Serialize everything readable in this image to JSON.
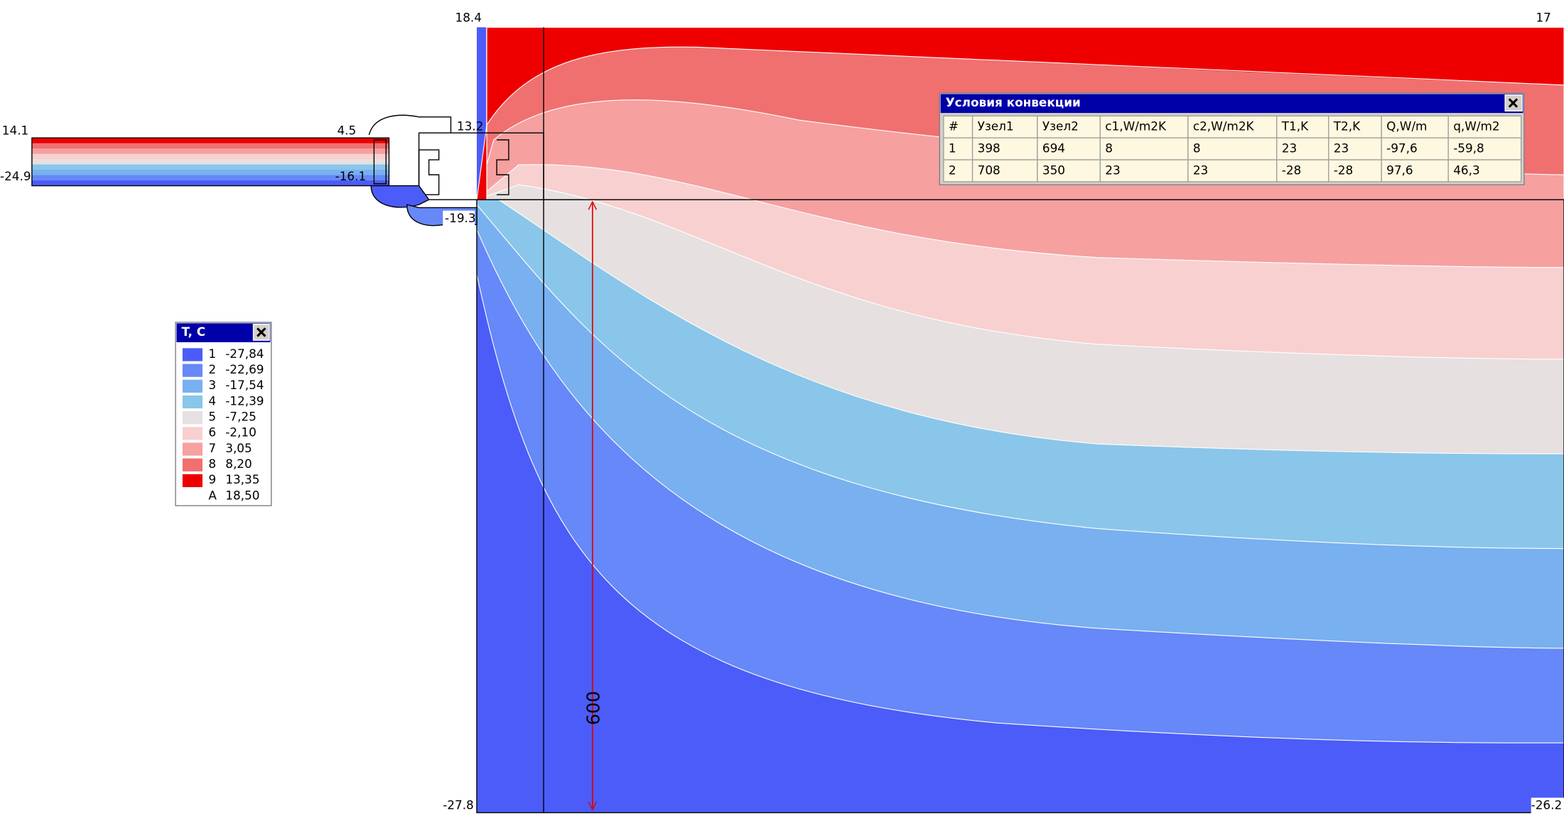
{
  "point_labels": {
    "top_left": "18.4",
    "top_right": "17",
    "glass_outer_warm": "14.1",
    "frame_warm": "4.5",
    "profile_warm": "13.2",
    "glass_outer_cold": "-24.9",
    "frame_cold": "-16.1",
    "profile_cold": "-19.3",
    "bottom_left": "-27.8",
    "bottom_right": "-26.2"
  },
  "dimension": "600",
  "legend": {
    "title": "T, C",
    "items": [
      {
        "index": "1",
        "value": "-27,84",
        "color": "#4c5cf8"
      },
      {
        "index": "2",
        "value": "-22,69",
        "color": "#6688f8"
      },
      {
        "index": "3",
        "value": "-17,54",
        "color": "#78b0f0"
      },
      {
        "index": "4",
        "value": "-12,39",
        "color": "#8ac6ea"
      },
      {
        "index": "5",
        "value": "-7,25",
        "color": "#e6e0e0"
      },
      {
        "index": "6",
        "value": "-2,10",
        "color": "#f8d0d0"
      },
      {
        "index": "7",
        "value": "3,05",
        "color": "#f6a0a0"
      },
      {
        "index": "8",
        "value": "8,20",
        "color": "#f07070"
      },
      {
        "index": "9",
        "value": "13,35",
        "color": "#ee0000"
      },
      {
        "index": "A",
        "value": "18,50"
      }
    ]
  },
  "table": {
    "title": "Условия конвекции",
    "header": [
      "#",
      "Узел1",
      "Узел2",
      "c1,W/m2K",
      "c2,W/m2K",
      "T1,K",
      "T2,K",
      "Q,W/m",
      "q,W/m2"
    ],
    "rows": [
      [
        "1",
        "398",
        "694",
        "8",
        "8",
        "23",
        "23",
        "-97,6",
        "-59,8"
      ],
      [
        "2",
        "708",
        "350",
        "23",
        "23",
        "-28",
        "-28",
        "97,6",
        "46,3"
      ]
    ]
  }
}
